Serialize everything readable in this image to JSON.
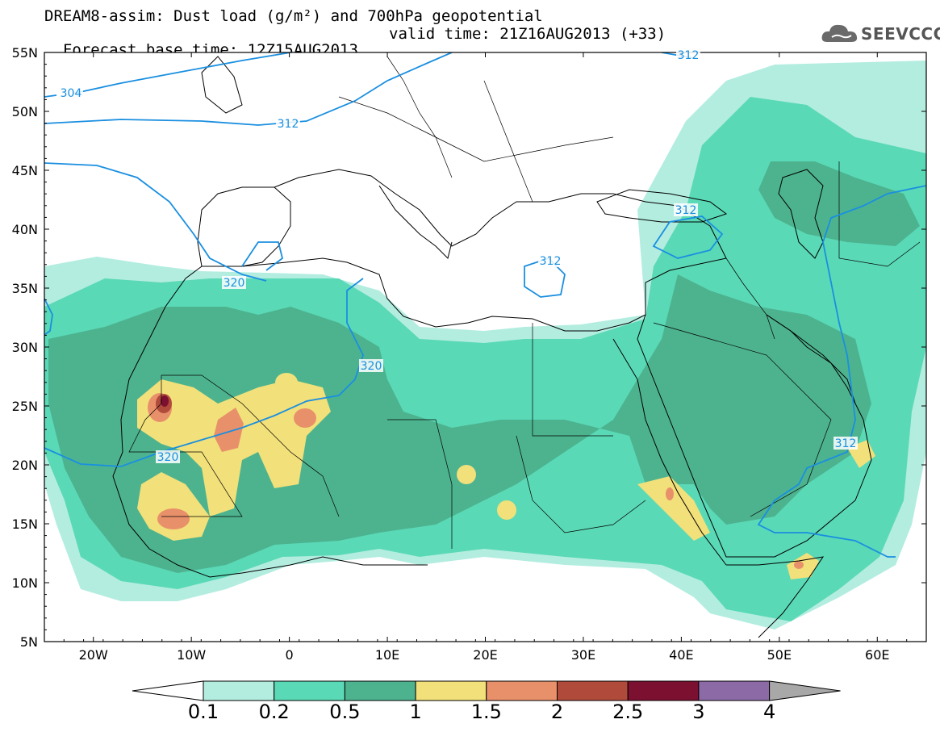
{
  "title": {
    "line1": "DREAM8-assim: Dust load (g/m²) and 700hPa geopotential",
    "line2_left": "Forecast base time: 12Z15AUG2013",
    "line2_right": "valid time: 21Z16AUG2013 (+33)"
  },
  "logo": {
    "text": "SEEVCCC",
    "icon": "cloud-icon"
  },
  "map": {
    "lon_range": [
      -25,
      65
    ],
    "lat_range": [
      5,
      55
    ],
    "lat_ticks": [
      "55N",
      "50N",
      "45N",
      "40N",
      "35N",
      "30N",
      "25N",
      "20N",
      "15N",
      "10N",
      "5N"
    ],
    "lon_ticks": [
      "20W",
      "10W",
      "0",
      "10E",
      "20E",
      "30E",
      "40E",
      "50E",
      "60E"
    ],
    "contour_labels": [
      "304",
      "312",
      "312",
      "312",
      "312",
      "320",
      "320",
      "320",
      "312"
    ]
  },
  "colorbar": {
    "labels": [
      "0.1",
      "0.2",
      "0.5",
      "1",
      "1.5",
      "2",
      "2.5",
      "3",
      "4"
    ],
    "colors": [
      "#b3ede0",
      "#5ad9b6",
      "#4db38f",
      "#f2e07a",
      "#e8906a",
      "#b04a3a",
      "#7b1030",
      "#8b6aa6"
    ],
    "under_color": "#ffffff",
    "over_color": "#a8a8a8"
  },
  "colors": {
    "contour": "#1a8fe0",
    "border": "#000000"
  }
}
